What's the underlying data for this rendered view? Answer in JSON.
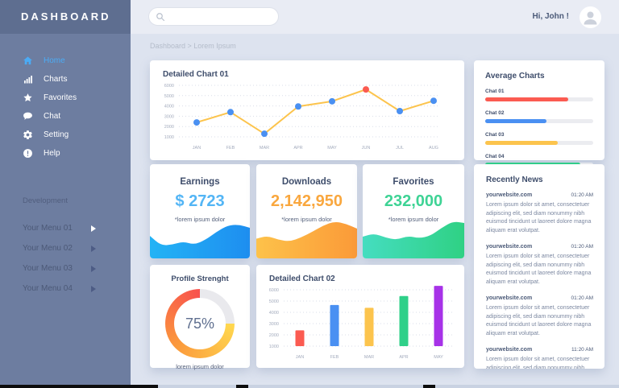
{
  "sidebar": {
    "title": "DASHBOARD",
    "items": [
      {
        "label": "Home"
      },
      {
        "label": "Charts"
      },
      {
        "label": "Favorites"
      },
      {
        "label": "Chat"
      },
      {
        "label": "Setting"
      },
      {
        "label": "Help"
      }
    ],
    "section_label": "Development",
    "dev_items": [
      {
        "label": "Your Menu 01"
      },
      {
        "label": "Your Menu 02"
      },
      {
        "label": "Your Menu 03"
      },
      {
        "label": "Your Menu 04"
      }
    ]
  },
  "topbar": {
    "greeting": "Hi, John !"
  },
  "breadcrumb": "Dashboard > Lorem Ipsum",
  "cards": {
    "chart01": {
      "title": "Detailed Chart 01"
    },
    "average": {
      "title": "Average Charts",
      "rows": [
        {
          "label": "Chat 01"
        },
        {
          "label": "Chat 02"
        },
        {
          "label": "Chat 03"
        },
        {
          "label": "Chat 04"
        }
      ]
    },
    "earnings": {
      "title": "Earnings",
      "value": "$ 2723",
      "note": "*lorem ipsum dolor",
      "color": "#53b5f5"
    },
    "downloads": {
      "title": "Downloads",
      "value": "2,142,950",
      "note": "*lorem ipsum dolor",
      "color": "#f9a73e"
    },
    "favorites": {
      "title": "Favorites",
      "value": "232,000",
      "note": "*lorem ipsum dolor",
      "color": "#3ed395"
    },
    "news": {
      "title": "Recently News",
      "items": [
        {
          "site": "yourwebsite.com",
          "time": "01:20 AM",
          "text": "Lorem ipsum dolor sit amet, consectetuer adipiscing elit, sed diam nonummy nibh euismod tincidunt ut laoreet dolore magna aliquam erat volutpat."
        },
        {
          "site": "yourwebsite.com",
          "time": "01:20 AM",
          "text": "Lorem ipsum dolor sit amet, consectetuer adipiscing elit, sed diam nonummy nibh euismod tincidunt ut laoreet dolore magna aliquam erat volutpat."
        },
        {
          "site": "yourwebsite.com",
          "time": "01:20 AM",
          "text": "Lorem ipsum dolor sit amet, consectetuer adipiscing elit, sed diam nonummy nibh euismod tincidunt ut laoreet dolore magna aliquam erat volutpat."
        },
        {
          "site": "yourwebsite.com",
          "time": "11:20 AM",
          "text": "Lorem ipsum dolor sit amet, consectetuer adipiscing elit, sed diam nonummy nibh euismod tincidunt ut laoreet dolore magna aliquam erat volutpat."
        }
      ]
    },
    "profile": {
      "title": "Profile Strenght",
      "percent": "75%",
      "note": "lorem ipsum dolor"
    },
    "chart02": {
      "title": "Detailed Chart 02"
    }
  },
  "colors": {
    "sidebar_bg": "#6d7da0",
    "sidebar_header_bg": "#5e6e90",
    "active_menu": "#4babf5",
    "topbar_bg": "#e9ecf4",
    "main_bg": "#dde3ef"
  },
  "chart_data": [
    {
      "id": "detailed-chart-01",
      "type": "line",
      "title": "Detailed Chart 01",
      "x": [
        "JAN",
        "FEB",
        "MAR",
        "APR",
        "MAY",
        "JUN",
        "JUL",
        "AUG"
      ],
      "values": [
        2400,
        3400,
        1300,
        3950,
        4450,
        5600,
        3500,
        4500
      ],
      "ylim": [
        1000,
        6000
      ],
      "yticks": [
        6000,
        5000,
        4000,
        3000,
        2000,
        1000
      ],
      "grid": "dotted",
      "line_color": "#fcc44d",
      "point_color": "#4a90f2",
      "highlight_index": 5,
      "highlight_color": "#fb5b51"
    },
    {
      "id": "average-charts",
      "type": "bar",
      "title": "Average Charts",
      "orientation": "horizontal",
      "categories": [
        "Chat 01",
        "Chat 02",
        "Chat 03",
        "Chat 04"
      ],
      "values": [
        77,
        57,
        67,
        88
      ],
      "max": 100,
      "colors": [
        "#fb5b51",
        "#4a90f2",
        "#fcc44d",
        "#2fd089"
      ]
    },
    {
      "id": "detailed-chart-02",
      "type": "bar",
      "title": "Detailed Chart 02",
      "categories": [
        "JAN",
        "FEB",
        "MAR",
        "APR",
        "MAY"
      ],
      "values": [
        2400,
        4650,
        4400,
        5450,
        6350
      ],
      "ylim": [
        1000,
        6000
      ],
      "yticks": [
        6000,
        5000,
        4000,
        3000,
        2000,
        1000
      ],
      "grid": "dotted",
      "colors": [
        "#fb5b51",
        "#4a90f2",
        "#fcc44d",
        "#2fd089",
        "#a732e8"
      ]
    },
    {
      "id": "profile-strength",
      "type": "pie",
      "title": "Profile Strenght",
      "value": 75,
      "track_color": "#e9e9ed",
      "gradient": [
        "#ffd84f",
        "#fb9a3c",
        "#f8514d"
      ]
    },
    {
      "id": "earnings-spark",
      "type": "area",
      "values": [
        0.52,
        0.28,
        0.3,
        0.38,
        0.3,
        0.42,
        0.62,
        0.78,
        0.8,
        0.72
      ],
      "colors": [
        "#23b3f5",
        "#1e8ef0"
      ]
    },
    {
      "id": "downloads-spark",
      "type": "area",
      "values": [
        0.45,
        0.52,
        0.42,
        0.38,
        0.48,
        0.62,
        0.78,
        0.88,
        0.82,
        0.7
      ],
      "colors": [
        "#fdc24a",
        "#fb9a38"
      ]
    },
    {
      "id": "favorites-spark",
      "type": "area",
      "values": [
        0.5,
        0.58,
        0.48,
        0.42,
        0.52,
        0.46,
        0.52,
        0.72,
        0.88,
        0.84
      ],
      "colors": [
        "#45ddc0",
        "#2fd184"
      ]
    }
  ]
}
